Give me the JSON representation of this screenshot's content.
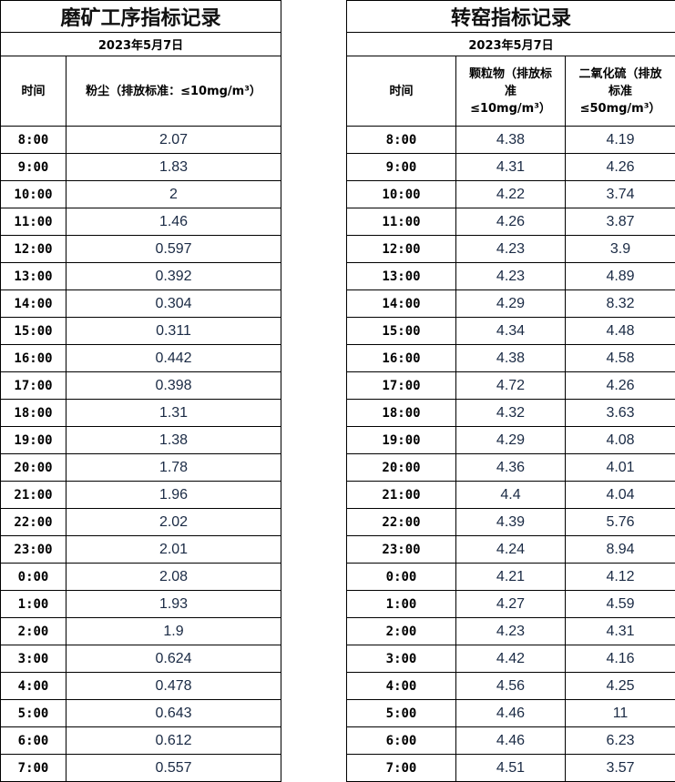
{
  "left": {
    "title": "磨矿工序指标记录",
    "date": "2023年5月7日",
    "col_time": "时间",
    "col_dust": "粉尘（排放标准：≤10mg/m³）",
    "rows": [
      [
        "8:00",
        "2.07"
      ],
      [
        "9:00",
        "1.83"
      ],
      [
        "10:00",
        "2"
      ],
      [
        "11:00",
        "1.46"
      ],
      [
        "12:00",
        "0.597"
      ],
      [
        "13:00",
        "0.392"
      ],
      [
        "14:00",
        "0.304"
      ],
      [
        "15:00",
        "0.311"
      ],
      [
        "16:00",
        "0.442"
      ],
      [
        "17:00",
        "0.398"
      ],
      [
        "18:00",
        "1.31"
      ],
      [
        "19:00",
        "1.38"
      ],
      [
        "20:00",
        "1.78"
      ],
      [
        "21:00",
        "1.96"
      ],
      [
        "22:00",
        "2.02"
      ],
      [
        "23:00",
        "2.01"
      ],
      [
        "0:00",
        "2.08"
      ],
      [
        "1:00",
        "1.93"
      ],
      [
        "2:00",
        "1.9"
      ],
      [
        "3:00",
        "0.624"
      ],
      [
        "4:00",
        "0.478"
      ],
      [
        "5:00",
        "0.643"
      ],
      [
        "6:00",
        "0.612"
      ],
      [
        "7:00",
        "0.557"
      ]
    ]
  },
  "right": {
    "title": "转窑指标记录",
    "date": "2023年5月7日",
    "col_time": "时间",
    "col_pm": "颗粒物（排放标准≤10mg/m³）",
    "col_so2": "二氧化硫（排放标准≤50mg/m³）",
    "rows": [
      [
        "8:00",
        "4.38",
        "4.19"
      ],
      [
        "9:00",
        "4.31",
        "4.26"
      ],
      [
        "10:00",
        "4.22",
        "3.74"
      ],
      [
        "11:00",
        "4.26",
        "3.87"
      ],
      [
        "12:00",
        "4.23",
        "3.9"
      ],
      [
        "13:00",
        "4.23",
        "4.89"
      ],
      [
        "14:00",
        "4.29",
        "8.32"
      ],
      [
        "15:00",
        "4.34",
        "4.48"
      ],
      [
        "16:00",
        "4.38",
        "4.58"
      ],
      [
        "17:00",
        "4.72",
        "4.26"
      ],
      [
        "18:00",
        "4.32",
        "3.63"
      ],
      [
        "19:00",
        "4.29",
        "4.08"
      ],
      [
        "20:00",
        "4.36",
        "4.01"
      ],
      [
        "21:00",
        "4.4",
        "4.04"
      ],
      [
        "22:00",
        "4.39",
        "5.76"
      ],
      [
        "23:00",
        "4.24",
        "8.94"
      ],
      [
        "0:00",
        "4.21",
        "4.12"
      ],
      [
        "1:00",
        "4.27",
        "4.59"
      ],
      [
        "2:00",
        "4.23",
        "4.31"
      ],
      [
        "3:00",
        "4.42",
        "4.16"
      ],
      [
        "4:00",
        "4.56",
        "4.25"
      ],
      [
        "5:00",
        "4.46",
        "11"
      ],
      [
        "6:00",
        "4.46",
        "6.23"
      ],
      [
        "7:00",
        "4.51",
        "3.57"
      ]
    ]
  }
}
